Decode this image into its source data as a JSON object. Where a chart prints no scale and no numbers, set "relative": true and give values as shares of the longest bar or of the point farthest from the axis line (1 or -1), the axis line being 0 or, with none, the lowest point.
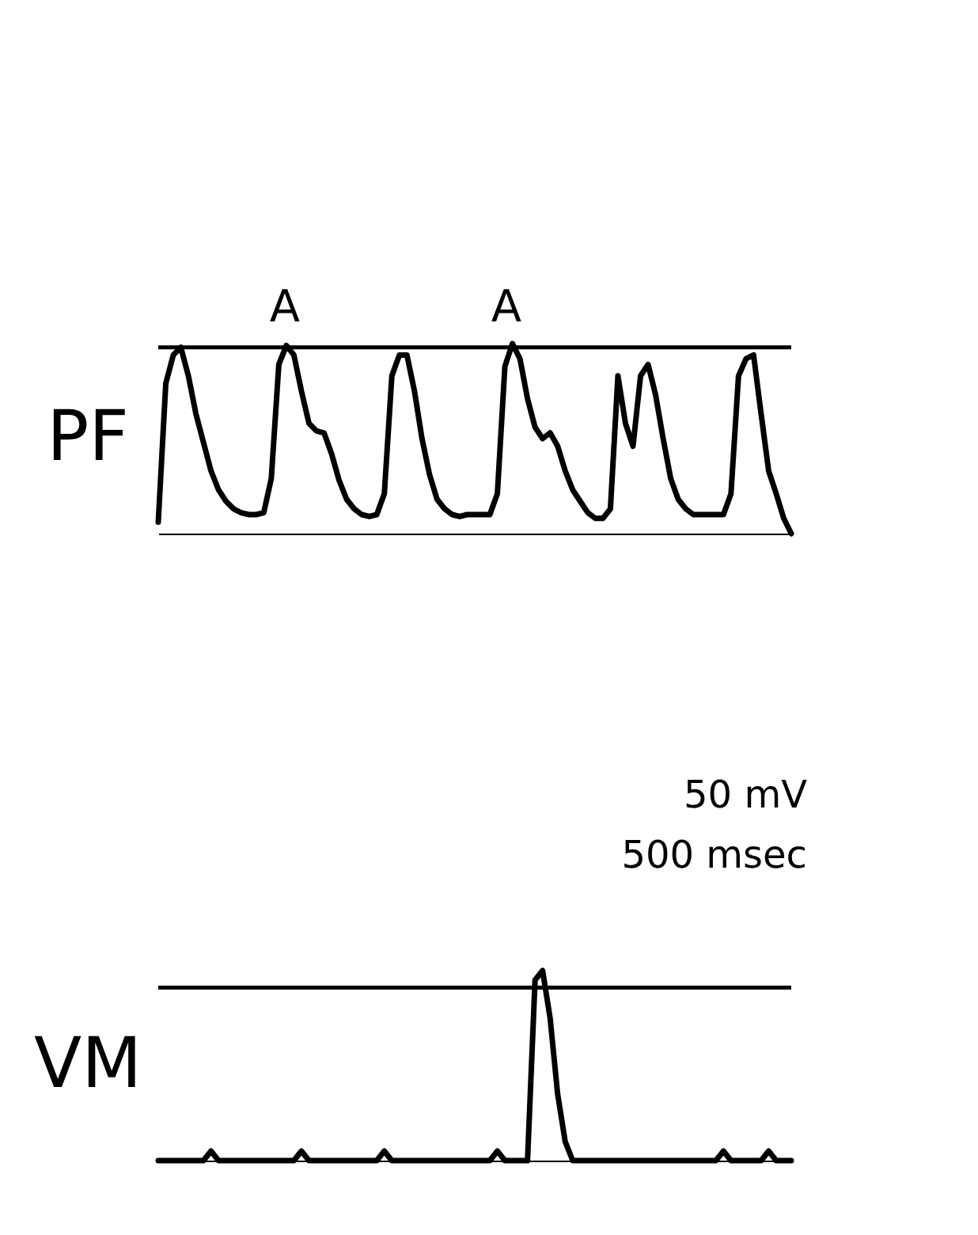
{
  "chart_data": [
    {
      "type": "line",
      "relative": true,
      "ylabel": "PF",
      "tick_labels": false,
      "grid": false,
      "marker": "none",
      "line_style": "solid",
      "categories": [
        null,
        null,
        null,
        null,
        null,
        null,
        null,
        null,
        null,
        null,
        null,
        null,
        null,
        null,
        null,
        null,
        null,
        null,
        null,
        null,
        null,
        null,
        null,
        null,
        null,
        null,
        null,
        null,
        null,
        null,
        null,
        null,
        null,
        null,
        null,
        null,
        null,
        null,
        null,
        null,
        null,
        null,
        null,
        null,
        null,
        null,
        null,
        null,
        null,
        null,
        null,
        null,
        null,
        null,
        null,
        null,
        null,
        null,
        null,
        null,
        null,
        null,
        null,
        null,
        null,
        null,
        null,
        null,
        null,
        null,
        null,
        null,
        null,
        null,
        null,
        null,
        null,
        null,
        null,
        null,
        null,
        null,
        null,
        null,
        null
      ],
      "series": [
        {
          "color": "#000000",
          "values": [
            0.06,
            0.79,
            0.94,
            0.98,
            0.83,
            0.63,
            0.48,
            0.33,
            0.23,
            0.17,
            0.13,
            0.11,
            0.1,
            0.1,
            0.11,
            0.29,
            0.89,
            0.99,
            0.94,
            0.75,
            0.58,
            0.54,
            0.53,
            0.42,
            0.28,
            0.18,
            0.13,
            0.1,
            0.09,
            0.1,
            0.21,
            0.83,
            0.94,
            0.94,
            0.75,
            0.5,
            0.31,
            0.18,
            0.13,
            0.1,
            0.09,
            0.1,
            0.1,
            0.1,
            0.1,
            0.21,
            0.88,
            1.0,
            0.92,
            0.71,
            0.56,
            0.5,
            0.53,
            0.46,
            0.33,
            0.23,
            0.17,
            0.11,
            0.08,
            0.08,
            0.13,
            0.83,
            0.58,
            0.46,
            0.83,
            0.89,
            0.73,
            0.5,
            0.29,
            0.18,
            0.13,
            0.1,
            0.1,
            0.1,
            0.1,
            0.1,
            0.21,
            0.83,
            0.92,
            0.94,
            0.63,
            0.33,
            0.21,
            0.08,
            0.0
          ]
        }
      ],
      "ref_lines": [
        {
          "axis": "y",
          "value": 0.98,
          "color": "#000000"
        }
      ],
      "annotations": [
        "A",
        "A"
      ]
    },
    {
      "type": "line",
      "relative": true,
      "ylabel": "VM",
      "tick_labels": false,
      "grid": false,
      "marker": "none",
      "line_style": "solid",
      "categories": [
        null,
        null,
        null,
        null,
        null,
        null,
        null,
        null,
        null,
        null,
        null,
        null,
        null,
        null,
        null,
        null,
        null,
        null,
        null,
        null,
        null,
        null,
        null,
        null,
        null,
        null,
        null,
        null,
        null,
        null,
        null,
        null,
        null,
        null,
        null,
        null,
        null,
        null,
        null,
        null,
        null,
        null,
        null,
        null,
        null,
        null,
        null,
        null,
        null,
        null,
        null,
        null,
        null,
        null,
        null,
        null,
        null,
        null,
        null,
        null,
        null,
        null,
        null,
        null,
        null,
        null,
        null,
        null,
        null,
        null,
        null,
        null,
        null,
        null,
        null,
        null,
        null,
        null,
        null,
        null,
        null,
        null,
        null,
        null,
        null
      ],
      "series": [
        {
          "color": "#000000",
          "values": [
            0,
            0,
            0,
            0,
            0,
            0,
            0,
            0.05,
            0,
            0,
            0,
            0,
            0,
            0,
            0,
            0,
            0,
            0,
            0,
            0.05,
            0,
            0,
            0,
            0,
            0,
            0,
            0,
            0,
            0,
            0,
            0.05,
            0,
            0,
            0,
            0,
            0,
            0,
            0,
            0,
            0,
            0,
            0,
            0,
            0,
            0,
            0.05,
            0,
            0,
            0,
            0,
            0.95,
            1.0,
            0.75,
            0.35,
            0.1,
            0,
            0,
            0,
            0,
            0,
            0,
            0,
            0,
            0,
            0,
            0,
            0,
            0,
            0,
            0,
            0,
            0,
            0,
            0,
            0,
            0.05,
            0,
            0,
            0,
            0,
            0,
            0.05,
            0,
            0,
            0
          ]
        }
      ],
      "ref_lines": [
        {
          "axis": "y",
          "value": 0.91,
          "color": "#000000"
        }
      ],
      "annotations": [
        "50 mV",
        "500 msec"
      ]
    }
  ]
}
